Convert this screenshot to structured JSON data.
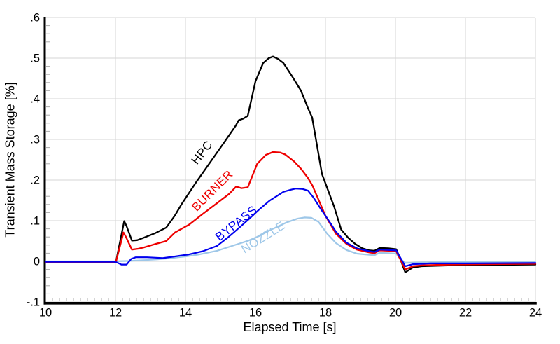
{
  "chart_data": {
    "type": "line",
    "title": "",
    "xlabel": "Elapsed Time [s]",
    "ylabel": "Transient Mass Storage [%]",
    "xlim": [
      10,
      24
    ],
    "ylim": [
      -0.1,
      0.6
    ],
    "grid": true,
    "legend_position": "inline-curve-labels",
    "x_minor_step": 0.2,
    "y_minor_step": 0.02,
    "x_ticks": [
      {
        "v": 10,
        "label": "10"
      },
      {
        "v": 12,
        "label": "12"
      },
      {
        "v": 14,
        "label": "14"
      },
      {
        "v": 16,
        "label": "16"
      },
      {
        "v": 18,
        "label": "18"
      },
      {
        "v": 20,
        "label": "20"
      },
      {
        "v": 22,
        "label": "22"
      },
      {
        "v": 24,
        "label": "24"
      }
    ],
    "y_ticks": [
      {
        "v": -0.1,
        "label": "-.1"
      },
      {
        "v": 0,
        "label": "0"
      },
      {
        "v": 0.1,
        "label": ".1"
      },
      {
        "v": 0.2,
        "label": ".2"
      },
      {
        "v": 0.3,
        "label": ".3"
      },
      {
        "v": 0.4,
        "label": ".4"
      },
      {
        "v": 0.5,
        "label": ".5"
      },
      {
        "v": 0.6,
        "label": ".6"
      }
    ],
    "colors": {
      "grid": "#d6d6d6",
      "minor_tick": "#ababab",
      "axis": "#000000",
      "hpc": "#000000",
      "burner": "#ee0000",
      "bypass": "#0000ee",
      "nozzle": "#9ec7e8"
    },
    "series": [
      {
        "name": "NOZZLE",
        "color": "#9ec7e8",
        "width": 2.2,
        "label": {
          "text": "NOZZLE",
          "t": 16.28,
          "v": 0.051,
          "angle": -32
        },
        "points": [
          [
            10,
            0
          ],
          [
            11,
            0
          ],
          [
            11.95,
            0
          ],
          [
            12.4,
            0.001
          ],
          [
            12.8,
            0.003
          ],
          [
            13.2,
            0.005
          ],
          [
            13.6,
            0.008
          ],
          [
            14,
            0.012
          ],
          [
            14.4,
            0.017
          ],
          [
            14.9,
            0.026
          ],
          [
            15.3,
            0.037
          ],
          [
            15.8,
            0.051
          ],
          [
            16.1,
            0.062
          ],
          [
            16.4,
            0.076
          ],
          [
            16.9,
            0.096
          ],
          [
            17.2,
            0.105
          ],
          [
            17.4,
            0.108
          ],
          [
            17.6,
            0.107
          ],
          [
            17.8,
            0.097
          ],
          [
            18.05,
            0.068
          ],
          [
            18.3,
            0.045
          ],
          [
            18.6,
            0.028
          ],
          [
            18.9,
            0.019
          ],
          [
            19.25,
            0.016
          ],
          [
            19.4,
            0.015
          ],
          [
            19.55,
            0.021
          ],
          [
            19.8,
            0.02
          ],
          [
            20.02,
            0.019
          ],
          [
            20.12,
            0.008
          ],
          [
            20.28,
            -0.004
          ],
          [
            20.6,
            -0.003
          ],
          [
            21.5,
            -0.002
          ],
          [
            24,
            -0.002
          ]
        ]
      },
      {
        "name": "HPC",
        "color": "#000000",
        "width": 2.3,
        "label": {
          "text": "HPC",
          "t": 14.56,
          "v": 0.262,
          "angle": -52
        },
        "points": [
          [
            10,
            -0.002
          ],
          [
            11,
            -0.002
          ],
          [
            11.95,
            -0.002
          ],
          [
            12.02,
            0.001
          ],
          [
            12.25,
            0.099
          ],
          [
            12.32,
            0.086
          ],
          [
            12.47,
            0.051
          ],
          [
            12.62,
            0.052
          ],
          [
            12.8,
            0.058
          ],
          [
            13.15,
            0.07
          ],
          [
            13.45,
            0.083
          ],
          [
            13.7,
            0.113
          ],
          [
            13.9,
            0.142
          ],
          [
            14.3,
            0.194
          ],
          [
            14.7,
            0.243
          ],
          [
            15.1,
            0.292
          ],
          [
            15.43,
            0.333
          ],
          [
            15.52,
            0.347
          ],
          [
            15.65,
            0.351
          ],
          [
            15.78,
            0.358
          ],
          [
            16,
            0.443
          ],
          [
            16.22,
            0.488
          ],
          [
            16.38,
            0.5
          ],
          [
            16.5,
            0.504
          ],
          [
            16.65,
            0.498
          ],
          [
            16.8,
            0.488
          ],
          [
            17.05,
            0.455
          ],
          [
            17.3,
            0.42
          ],
          [
            17.5,
            0.377
          ],
          [
            17.62,
            0.354
          ],
          [
            17.9,
            0.215
          ],
          [
            18.25,
            0.134
          ],
          [
            18.45,
            0.078
          ],
          [
            18.65,
            0.058
          ],
          [
            18.85,
            0.043
          ],
          [
            19.05,
            0.032
          ],
          [
            19.25,
            0.027
          ],
          [
            19.4,
            0.026
          ],
          [
            19.55,
            0.033
          ],
          [
            19.8,
            0.032
          ],
          [
            20.02,
            0.03
          ],
          [
            20.12,
            0.01
          ],
          [
            20.28,
            -0.027
          ],
          [
            20.5,
            -0.015
          ],
          [
            20.75,
            -0.012
          ],
          [
            21.5,
            -0.01
          ],
          [
            22.5,
            -0.009
          ],
          [
            24,
            -0.008
          ]
        ]
      },
      {
        "name": "BURNER",
        "color": "#ee0000",
        "width": 2.3,
        "label": {
          "text": "BURNER",
          "t": 14.85,
          "v": 0.167,
          "angle": -45
        },
        "points": [
          [
            10,
            -0.002
          ],
          [
            11,
            -0.002
          ],
          [
            11.95,
            -0.002
          ],
          [
            12.02,
            0.001
          ],
          [
            12.23,
            0.071
          ],
          [
            12.3,
            0.06
          ],
          [
            12.47,
            0.029
          ],
          [
            12.65,
            0.031
          ],
          [
            12.8,
            0.034
          ],
          [
            13.15,
            0.043
          ],
          [
            13.45,
            0.05
          ],
          [
            13.7,
            0.071
          ],
          [
            14.1,
            0.09
          ],
          [
            14.5,
            0.117
          ],
          [
            14.9,
            0.143
          ],
          [
            15.25,
            0.166
          ],
          [
            15.45,
            0.184
          ],
          [
            15.6,
            0.18
          ],
          [
            15.78,
            0.182
          ],
          [
            16.05,
            0.24
          ],
          [
            16.3,
            0.262
          ],
          [
            16.5,
            0.269
          ],
          [
            16.7,
            0.268
          ],
          [
            16.85,
            0.263
          ],
          [
            17.1,
            0.246
          ],
          [
            17.3,
            0.228
          ],
          [
            17.5,
            0.205
          ],
          [
            17.63,
            0.186
          ],
          [
            17.8,
            0.152
          ],
          [
            18,
            0.112
          ],
          [
            18.3,
            0.068
          ],
          [
            18.6,
            0.043
          ],
          [
            18.9,
            0.029
          ],
          [
            19.25,
            0.022
          ],
          [
            19.4,
            0.02
          ],
          [
            19.55,
            0.027
          ],
          [
            19.8,
            0.026
          ],
          [
            20.02,
            0.025
          ],
          [
            20.12,
            0.008
          ],
          [
            20.28,
            -0.02
          ],
          [
            20.5,
            -0.012
          ],
          [
            20.75,
            -0.01
          ],
          [
            21.5,
            -0.008
          ],
          [
            22.5,
            -0.007
          ],
          [
            24,
            -0.006
          ]
        ]
      },
      {
        "name": "BYPASS",
        "color": "#0000ee",
        "width": 2.2,
        "label": {
          "text": "BYPASS",
          "t": 15.52,
          "v": 0.086,
          "angle": -38
        },
        "points": [
          [
            10,
            -0.001
          ],
          [
            11,
            -0.001
          ],
          [
            11.95,
            -0.001
          ],
          [
            12.05,
            -0.003
          ],
          [
            12.17,
            -0.008
          ],
          [
            12.32,
            -0.008
          ],
          [
            12.45,
            0.006
          ],
          [
            12.58,
            0.01
          ],
          [
            12.9,
            0.01
          ],
          [
            13.15,
            0.009
          ],
          [
            13.35,
            0.008
          ],
          [
            13.7,
            0.012
          ],
          [
            14.1,
            0.017
          ],
          [
            14.5,
            0.025
          ],
          [
            14.9,
            0.038
          ],
          [
            15.2,
            0.058
          ],
          [
            15.5,
            0.08
          ],
          [
            15.8,
            0.103
          ],
          [
            16.1,
            0.127
          ],
          [
            16.4,
            0.149
          ],
          [
            16.8,
            0.171
          ],
          [
            17,
            0.176
          ],
          [
            17.15,
            0.179
          ],
          [
            17.35,
            0.178
          ],
          [
            17.5,
            0.174
          ],
          [
            17.65,
            0.158
          ],
          [
            17.85,
            0.131
          ],
          [
            18,
            0.112
          ],
          [
            18.15,
            0.093
          ],
          [
            18.3,
            0.073
          ],
          [
            18.6,
            0.046
          ],
          [
            18.9,
            0.032
          ],
          [
            19.25,
            0.025
          ],
          [
            19.4,
            0.023
          ],
          [
            19.55,
            0.029
          ],
          [
            19.8,
            0.028
          ],
          [
            20.02,
            0.027
          ],
          [
            20.12,
            0.012
          ],
          [
            20.28,
            -0.012
          ],
          [
            20.5,
            -0.007
          ],
          [
            21,
            -0.005
          ],
          [
            22,
            -0.005
          ],
          [
            24,
            -0.004
          ]
        ]
      }
    ]
  }
}
